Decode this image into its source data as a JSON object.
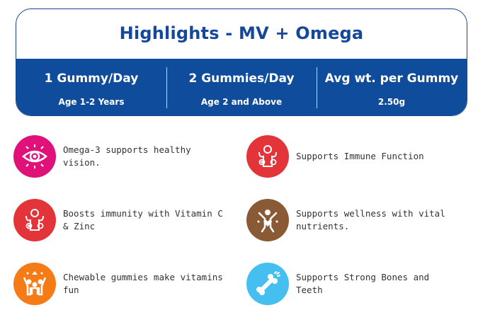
{
  "header": {
    "title": "Highlights - MV + Omega"
  },
  "specs": [
    {
      "head": "1 Gummy/Day",
      "sub": "Age 1-2 Years"
    },
    {
      "head": "2 Gummies/Day",
      "sub": "Age 2 and Above"
    },
    {
      "head": "Avg wt. per Gummy",
      "sub": "2.50g"
    }
  ],
  "features": [
    {
      "text": "Omega-3 supports healthy vision.",
      "icon": "eye-icon",
      "color": "#e0127a"
    },
    {
      "text": "Supports Immune Function",
      "icon": "strong-kid-icon",
      "color": "#e3343a"
    },
    {
      "text": "Boosts immunity with Vitamin C & Zinc",
      "icon": "strong-kid-icon",
      "color": "#e3343a"
    },
    {
      "text": "Supports wellness with vital nutrients.",
      "icon": "wellness-person-icon",
      "color": "#8a5a35"
    },
    {
      "text": "Chewable gummies make vitamins fun",
      "icon": "celebrating-people-icon",
      "color": "#f47b16"
    },
    {
      "text": "Supports Strong Bones and Teeth",
      "icon": "bone-icon",
      "color": "#45bff0"
    }
  ]
}
